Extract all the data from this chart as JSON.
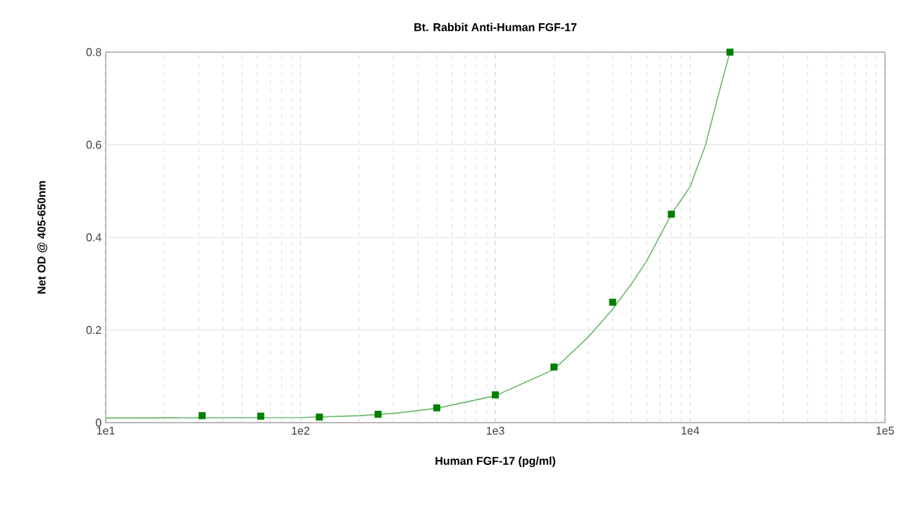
{
  "chart_data": {
    "type": "scatter",
    "title": "Bt. Rabbit Anti-Human FGF-17",
    "xlabel": "Human FGF-17 (pg/ml)",
    "ylabel": "Net OD @ 405-650nm",
    "log": "x",
    "grid": true,
    "xlim": [
      10,
      100000
    ],
    "ylim": [
      0,
      0.8
    ],
    "xticks": [
      {
        "value": 10,
        "label": "1e1"
      },
      {
        "value": 100,
        "label": "1e2"
      },
      {
        "value": 1000,
        "label": "1e3"
      },
      {
        "value": 10000,
        "label": "1e4"
      },
      {
        "value": 100000,
        "label": "1e5"
      }
    ],
    "yticks": [
      0,
      0.2,
      0.4,
      0.6,
      0.8
    ],
    "series": [
      {
        "type": "line",
        "color": "#6cb86c",
        "marker": "none",
        "line_style": "solid",
        "x": [
          10,
          100,
          200,
          300,
          500,
          1000,
          2000,
          3000,
          4000,
          5000,
          6000,
          8000,
          10000,
          12000,
          14000,
          16000
        ],
        "values": [
          0.01,
          0.011,
          0.015,
          0.02,
          0.031,
          0.058,
          0.115,
          0.185,
          0.245,
          0.3,
          0.35,
          0.45,
          0.51,
          0.6,
          0.71,
          0.8
        ]
      },
      {
        "color": "#007f00",
        "marker": "square",
        "x": [
          31.25,
          62.5,
          125,
          250,
          500,
          1000,
          2000,
          4000,
          8000,
          16000
        ],
        "values": [
          0.015,
          0.014,
          0.012,
          0.018,
          0.032,
          0.06,
          0.12,
          0.26,
          0.45,
          0.8
        ]
      }
    ]
  }
}
